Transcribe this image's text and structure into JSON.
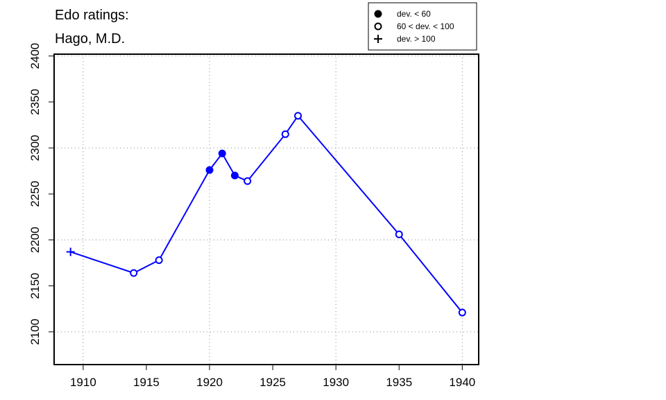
{
  "chart_data": {
    "type": "line",
    "title": [
      "Edo ratings:",
      "Hago, M.D."
    ],
    "x": [
      1909,
      1914,
      1916,
      1920,
      1921,
      1922,
      1923,
      1926,
      1927,
      1935,
      1940
    ],
    "series": [
      {
        "color": "#0000ff",
        "values": [
          2187,
          2164,
          2178,
          2276,
          2294,
          2270,
          2264,
          2315,
          2335,
          2206,
          2121
        ],
        "symbols": [
          "plus",
          "open",
          "open",
          "filled",
          "filled",
          "filled",
          "open",
          "open",
          "open",
          "open",
          "open"
        ]
      }
    ],
    "legend": [
      {
        "label": "dev. < 60",
        "symbol": "filled"
      },
      {
        "label": "60 < dev. < 100",
        "symbol": "open"
      },
      {
        "label": "dev. > 100",
        "symbol": "plus"
      }
    ],
    "legend_position": "top-right",
    "xlim": [
      1907.7,
      1941.3
    ],
    "ylim": [
      2064.4,
      2402
    ],
    "xticks": [
      1910,
      1915,
      1920,
      1925,
      1930,
      1935,
      1940
    ],
    "yticks": [
      2100,
      2150,
      2200,
      2250,
      2300,
      2350,
      2400
    ],
    "xgrid": [
      1910,
      1920,
      1930,
      1940
    ],
    "ygrid": [
      2100,
      2200,
      2300,
      2400
    ]
  }
}
